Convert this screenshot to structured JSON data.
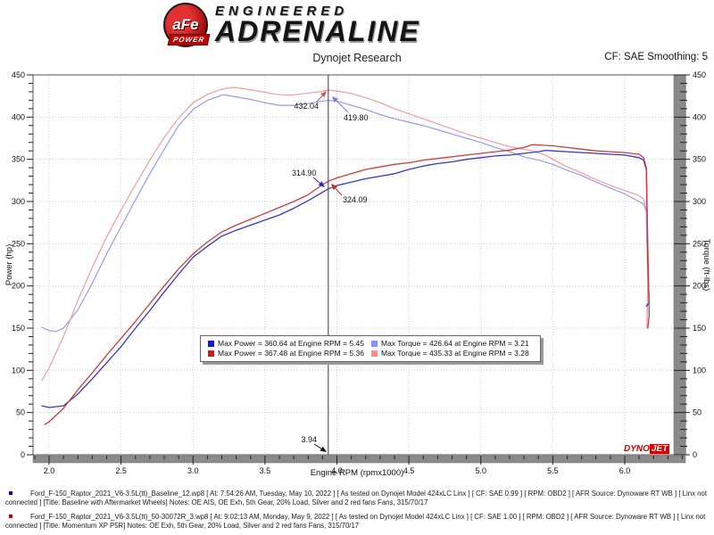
{
  "header": {
    "logo": {
      "badge_text": "aFe",
      "badge_sub": "POWER",
      "line1": "ENGINEERED",
      "line2": "ADRENALINE"
    },
    "title": "Dynojet Research",
    "cf_label": "CF: SAE Smoothing: 5"
  },
  "legend": {
    "items": [
      {
        "label": "Max Power = 360.64 at Engine RPM = 5.45",
        "color": "#1414e0"
      },
      {
        "label": "Max Torque = 426.64 at Engine RPM = 3.21",
        "color": "#8c8cff"
      },
      {
        "label": "Max Power = 367.48 at Engine RPM = 5.36",
        "color": "#e01414"
      },
      {
        "label": "Max Torque = 435.33 at Engine RPM = 3.28",
        "color": "#ff8c8c"
      }
    ]
  },
  "watermark": {
    "part1": "DYNO",
    "part2": "JET"
  },
  "footer": {
    "entries": [
      {
        "bullet_color": "#0000cc",
        "line1": "Ford_F-150_Raptor_2021_V6-3.5L(tt)_Baseline_12.wp8 [ At: 7:54:26 AM, Tuesday, May 10, 2022 ] [ As tested on Dynojet Model 424xLC Linx ] [ CF: SAE 0.99 ] [ RPM: OBD2 ] [ AFR Source: Dynoware RT WB ] [ Linx not",
        "line2": "connected ] [Title: Baseline with Aftermarket Wheels]  Notes: OE AIS, OE Exh, 5th Gear, 20% Load, Silver and 2 red fans Fans, 315/70/17"
      },
      {
        "bullet_color": "#cc0000",
        "line1": "Ford_F-150_Raptor_2021_V6-3.5L(tt)_50-30072R_3.wp8 [ At: 9:02:13 AM, Monday, May 9, 2022 ] [ As tested on Dynojet Model 424xLC Linx ] [ CF: SAE 1.00 ] [ RPM: OBD2 ] [ AFR Source: Dynoware RT WB ] [ Linx not",
        "line2": "connected ] [Title: Momentum XP P5R]  Notes: OE Exh, 5th Gear, 20% Load, Silver and 2 red fans Fans, 315/70/17"
      }
    ]
  },
  "chart_data": {
    "type": "line",
    "title": "Dynojet Research",
    "x_axis": {
      "label": "Engine RPM (rpmx1000)",
      "min": 2.0,
      "max": 6.0,
      "major": 0.5,
      "minor": 0.1,
      "draw_min": 1.9,
      "draw_max": 6.4
    },
    "y_left": {
      "label": "Power (hp)",
      "min": 0,
      "max": 450,
      "major": 50,
      "minor": 10
    },
    "y_right": {
      "label": "Torque (ft-lbs)",
      "min": 0,
      "max": 450,
      "major": 50,
      "minor": 10
    },
    "grid": true,
    "cursor": {
      "rpm": 3.94
    },
    "max_values": {
      "baseline_power": {
        "value": 360.64,
        "rpm": 5.45
      },
      "momentum_power": {
        "value": 367.48,
        "rpm": 5.36
      },
      "baseline_torque": {
        "value": 426.64,
        "rpm": 3.21
      },
      "momentum_torque": {
        "value": 435.33,
        "rpm": 3.28
      }
    },
    "cursor_values": {
      "momentum_torque": 432.04,
      "baseline_torque": 419.8,
      "baseline_power": 314.9,
      "momentum_power": 324.09
    },
    "series": [
      {
        "name": "baseline-torque",
        "axis": "right",
        "color": "#9a9ae8",
        "width": 1.2,
        "points": [
          [
            1.95,
            151
          ],
          [
            2.0,
            147
          ],
          [
            2.05,
            146
          ],
          [
            2.1,
            150
          ],
          [
            2.2,
            172
          ],
          [
            2.3,
            203
          ],
          [
            2.4,
            238
          ],
          [
            2.5,
            270
          ],
          [
            2.6,
            302
          ],
          [
            2.7,
            333
          ],
          [
            2.8,
            362
          ],
          [
            2.9,
            390
          ],
          [
            3.0,
            409
          ],
          [
            3.1,
            420
          ],
          [
            3.21,
            426.6
          ],
          [
            3.3,
            424
          ],
          [
            3.4,
            421
          ],
          [
            3.5,
            417
          ],
          [
            3.6,
            414
          ],
          [
            3.7,
            414
          ],
          [
            3.8,
            416
          ],
          [
            3.9,
            419
          ],
          [
            3.94,
            419.8
          ],
          [
            4.0,
            419
          ],
          [
            4.1,
            414
          ],
          [
            4.2,
            409
          ],
          [
            4.3,
            403
          ],
          [
            4.4,
            398
          ],
          [
            4.5,
            394
          ],
          [
            4.6,
            390
          ],
          [
            4.7,
            385
          ],
          [
            4.8,
            380
          ],
          [
            4.9,
            375
          ],
          [
            5.0,
            370
          ],
          [
            5.1,
            364
          ],
          [
            5.2,
            359
          ],
          [
            5.3,
            353
          ],
          [
            5.4,
            349
          ],
          [
            5.5,
            344
          ],
          [
            5.6,
            337
          ],
          [
            5.7,
            331
          ],
          [
            5.8,
            323
          ],
          [
            5.9,
            316
          ],
          [
            6.0,
            309
          ],
          [
            6.1,
            300
          ],
          [
            6.13,
            297
          ],
          [
            6.15,
            288
          ],
          [
            6.16,
            210
          ],
          [
            6.155,
            157
          ]
        ]
      },
      {
        "name": "momentum-torque",
        "axis": "right",
        "color": "#f09e9e",
        "width": 1.2,
        "points": [
          [
            1.95,
            88
          ],
          [
            2.0,
            103
          ],
          [
            2.1,
            140
          ],
          [
            2.2,
            183
          ],
          [
            2.3,
            222
          ],
          [
            2.4,
            258
          ],
          [
            2.5,
            290
          ],
          [
            2.6,
            320
          ],
          [
            2.7,
            349
          ],
          [
            2.8,
            376
          ],
          [
            2.9,
            399
          ],
          [
            3.0,
            417
          ],
          [
            3.1,
            427
          ],
          [
            3.2,
            433
          ],
          [
            3.28,
            435.3
          ],
          [
            3.38,
            433
          ],
          [
            3.48,
            430
          ],
          [
            3.58,
            427
          ],
          [
            3.68,
            426
          ],
          [
            3.78,
            428
          ],
          [
            3.88,
            430
          ],
          [
            3.94,
            432
          ],
          [
            4.0,
            431
          ],
          [
            4.1,
            428
          ],
          [
            4.2,
            423
          ],
          [
            4.3,
            417
          ],
          [
            4.4,
            410
          ],
          [
            4.5,
            404
          ],
          [
            4.6,
            398
          ],
          [
            4.7,
            392
          ],
          [
            4.8,
            386
          ],
          [
            4.9,
            380
          ],
          [
            5.0,
            375
          ],
          [
            5.1,
            370
          ],
          [
            5.2,
            365
          ],
          [
            5.3,
            362
          ],
          [
            5.36,
            360
          ],
          [
            5.45,
            355
          ],
          [
            5.5,
            350
          ],
          [
            5.6,
            341
          ],
          [
            5.7,
            334
          ],
          [
            5.8,
            326
          ],
          [
            5.9,
            319
          ],
          [
            6.0,
            313
          ],
          [
            6.1,
            307
          ],
          [
            6.13,
            303
          ],
          [
            6.15,
            290
          ],
          [
            6.16,
            200
          ],
          [
            6.155,
            150
          ]
        ]
      },
      {
        "name": "baseline-power",
        "axis": "left",
        "color": "#3535d2",
        "width": 1.3,
        "points": [
          [
            1.95,
            58
          ],
          [
            2.0,
            56
          ],
          [
            2.1,
            58
          ],
          [
            2.2,
            72
          ],
          [
            2.3,
            90
          ],
          [
            2.4,
            109
          ],
          [
            2.5,
            128
          ],
          [
            2.6,
            150
          ],
          [
            2.7,
            171
          ],
          [
            2.8,
            193
          ],
          [
            2.9,
            214
          ],
          [
            3.0,
            234
          ],
          [
            3.1,
            247
          ],
          [
            3.2,
            259
          ],
          [
            3.3,
            266
          ],
          [
            3.4,
            272
          ],
          [
            3.5,
            278
          ],
          [
            3.6,
            284
          ],
          [
            3.7,
            292
          ],
          [
            3.8,
            301
          ],
          [
            3.9,
            311
          ],
          [
            3.94,
            315
          ],
          [
            4.0,
            319
          ],
          [
            4.1,
            323
          ],
          [
            4.2,
            327
          ],
          [
            4.3,
            330
          ],
          [
            4.4,
            333
          ],
          [
            4.5,
            338
          ],
          [
            4.6,
            342
          ],
          [
            4.7,
            345
          ],
          [
            4.8,
            347
          ],
          [
            4.9,
            350
          ],
          [
            5.0,
            352
          ],
          [
            5.1,
            354
          ],
          [
            5.2,
            355
          ],
          [
            5.3,
            357
          ],
          [
            5.4,
            359
          ],
          [
            5.45,
            360.6
          ],
          [
            5.5,
            360
          ],
          [
            5.6,
            359
          ],
          [
            5.7,
            358
          ],
          [
            5.8,
            357
          ],
          [
            5.9,
            356
          ],
          [
            6.0,
            355
          ],
          [
            6.1,
            352
          ],
          [
            6.13,
            349
          ],
          [
            6.15,
            338
          ],
          [
            6.16,
            230
          ],
          [
            6.17,
            180
          ],
          [
            6.15,
            176
          ]
        ]
      },
      {
        "name": "momentum-power",
        "axis": "left",
        "color": "#d23a3a",
        "width": 1.3,
        "points": [
          [
            1.97,
            36
          ],
          [
            2.0,
            39
          ],
          [
            2.1,
            55
          ],
          [
            2.2,
            77
          ],
          [
            2.3,
            97
          ],
          [
            2.4,
            118
          ],
          [
            2.5,
            138
          ],
          [
            2.6,
            158
          ],
          [
            2.7,
            179
          ],
          [
            2.8,
            200
          ],
          [
            2.9,
            220
          ],
          [
            3.0,
            238
          ],
          [
            3.1,
            252
          ],
          [
            3.2,
            264
          ],
          [
            3.3,
            272
          ],
          [
            3.4,
            279
          ],
          [
            3.5,
            286
          ],
          [
            3.6,
            293
          ],
          [
            3.7,
            300
          ],
          [
            3.8,
            308
          ],
          [
            3.9,
            320
          ],
          [
            3.94,
            324
          ],
          [
            4.0,
            328
          ],
          [
            4.1,
            333
          ],
          [
            4.2,
            338
          ],
          [
            4.3,
            341
          ],
          [
            4.4,
            344
          ],
          [
            4.5,
            346
          ],
          [
            4.6,
            349
          ],
          [
            4.7,
            351
          ],
          [
            4.8,
            353
          ],
          [
            4.9,
            355
          ],
          [
            5.0,
            357
          ],
          [
            5.1,
            359
          ],
          [
            5.2,
            361
          ],
          [
            5.3,
            364
          ],
          [
            5.36,
            367.5
          ],
          [
            5.4,
            367
          ],
          [
            5.5,
            366
          ],
          [
            5.6,
            364
          ],
          [
            5.7,
            362
          ],
          [
            5.8,
            360
          ],
          [
            5.9,
            359
          ],
          [
            6.0,
            358
          ],
          [
            6.1,
            356
          ],
          [
            6.13,
            352
          ],
          [
            6.15,
            340
          ],
          [
            6.16,
            250
          ],
          [
            6.17,
            165
          ],
          [
            6.16,
            150
          ]
        ]
      }
    ],
    "annotations": [
      {
        "label": "432.04",
        "color": "#d05858",
        "anchor": "end",
        "text": [
          357,
          47
        ],
        "from": [
          355,
          39
        ],
        "tip": [
          366,
          27
        ]
      },
      {
        "label": "419.80",
        "color": "#7b7bd8",
        "anchor": "start",
        "text": [
          385,
          60
        ],
        "from": [
          390,
          51
        ],
        "tip": [
          372,
          33
        ]
      },
      {
        "label": "314.90",
        "color": "#2828cc",
        "anchor": "start",
        "text": [
          327,
          122
        ],
        "from": [
          351,
          124
        ],
        "tip": [
          364,
          135
        ]
      },
      {
        "label": "324.09",
        "color": "#cc2828",
        "anchor": "start",
        "text": [
          384,
          152
        ],
        "from": [
          383,
          144
        ],
        "tip": [
          371,
          131
        ]
      },
      {
        "label": "3.94",
        "color": "#111111",
        "anchor": "end",
        "text": [
          355,
          421
        ],
        "from": [
          352,
          423
        ],
        "tip": [
          366,
          432
        ]
      }
    ]
  }
}
